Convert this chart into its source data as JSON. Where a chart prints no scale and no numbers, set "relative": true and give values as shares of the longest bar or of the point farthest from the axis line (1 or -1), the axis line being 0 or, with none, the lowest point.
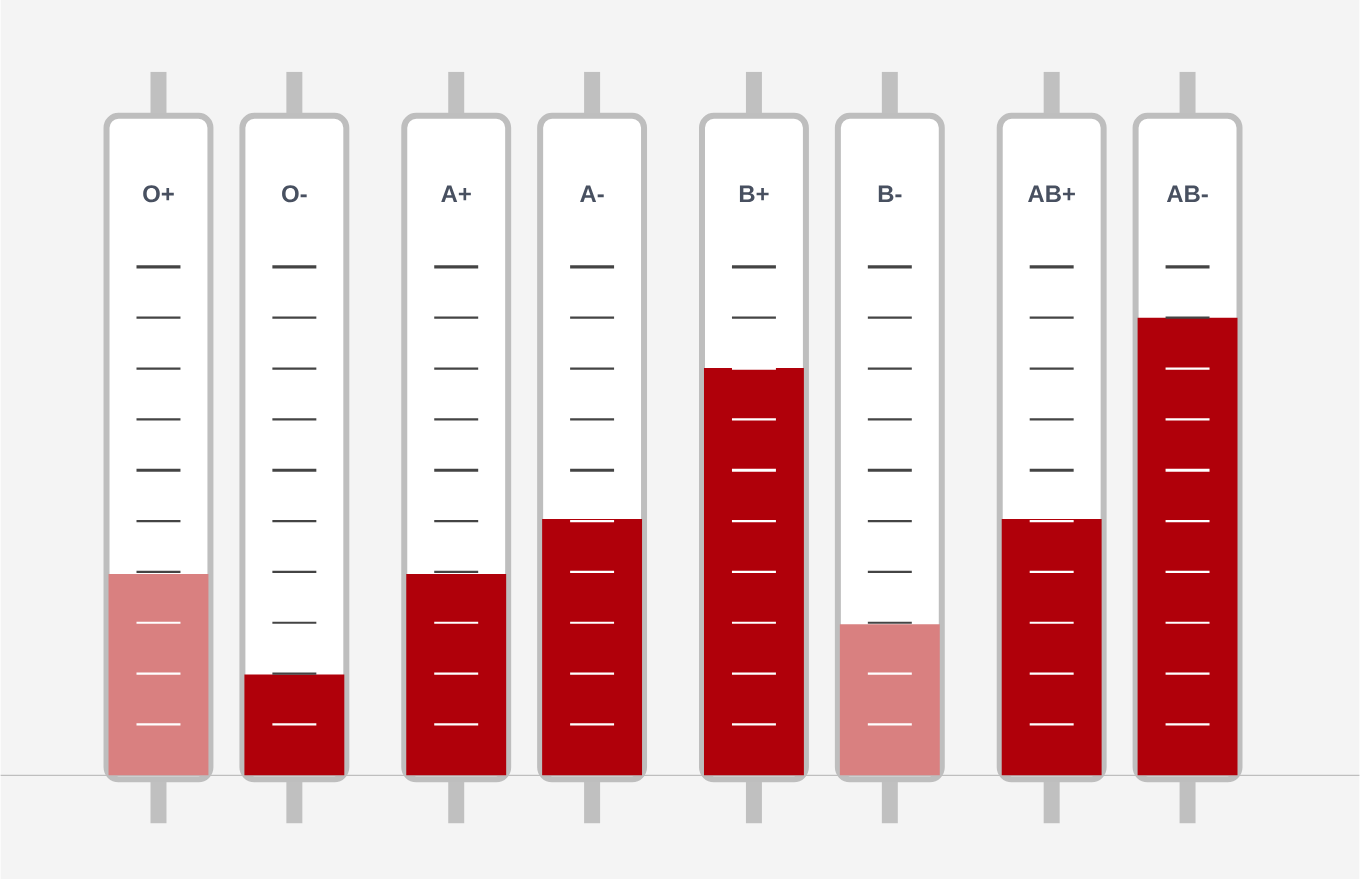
{
  "chart_data": {
    "type": "bar",
    "relative": true,
    "categories": [
      "O+",
      "O-",
      "A+",
      "A-",
      "B+",
      "B-",
      "AB+",
      "AB-"
    ],
    "values": [
      0.44,
      0.22,
      0.44,
      0.56,
      0.89,
      0.33,
      0.56,
      1
    ],
    "colors": [
      "#d98080",
      "#b0000a",
      "#b0000a",
      "#b0000a",
      "#b0000a",
      "#d98080",
      "#b0000a",
      "#b0000a"
    ]
  }
}
